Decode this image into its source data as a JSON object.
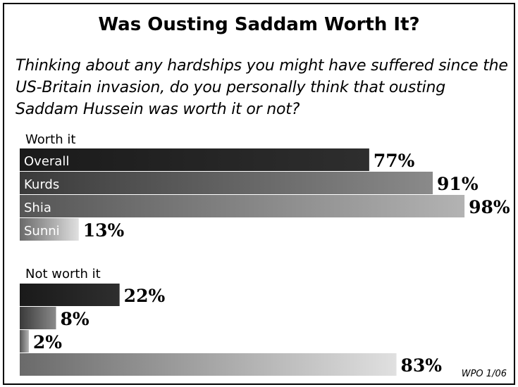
{
  "chart_data": {
    "type": "bar",
    "title": "Was Ousting Saddam Worth It?",
    "question": "Thinking about any hardships you might have suffered since the US-Britain invasion, do you personally think that ousting Saddam Hussein was worth it or not?",
    "categories": [
      "Overall",
      "Kurds",
      "Shia",
      "Sunni"
    ],
    "series": [
      {
        "name": "Worth it",
        "values": [
          77,
          91,
          98,
          13
        ],
        "labels": [
          "77%",
          "91%",
          "98%",
          "13%"
        ]
      },
      {
        "name": "Not worth it",
        "values": [
          22,
          8,
          2,
          83
        ],
        "labels": [
          "22%",
          "8%",
          "2%",
          "83%"
        ]
      }
    ],
    "unit": "%",
    "source": "WPO 1/06",
    "colors": {
      "Overall": [
        "#1a1a1a",
        "#2e2e2e"
      ],
      "Kurds": [
        "#3a3a3a",
        "#8a8a8a"
      ],
      "Shia": [
        "#555555",
        "#b3b3b3"
      ],
      "Sunni": [
        "#6a6a6a",
        "#e0e0e0"
      ]
    }
  }
}
